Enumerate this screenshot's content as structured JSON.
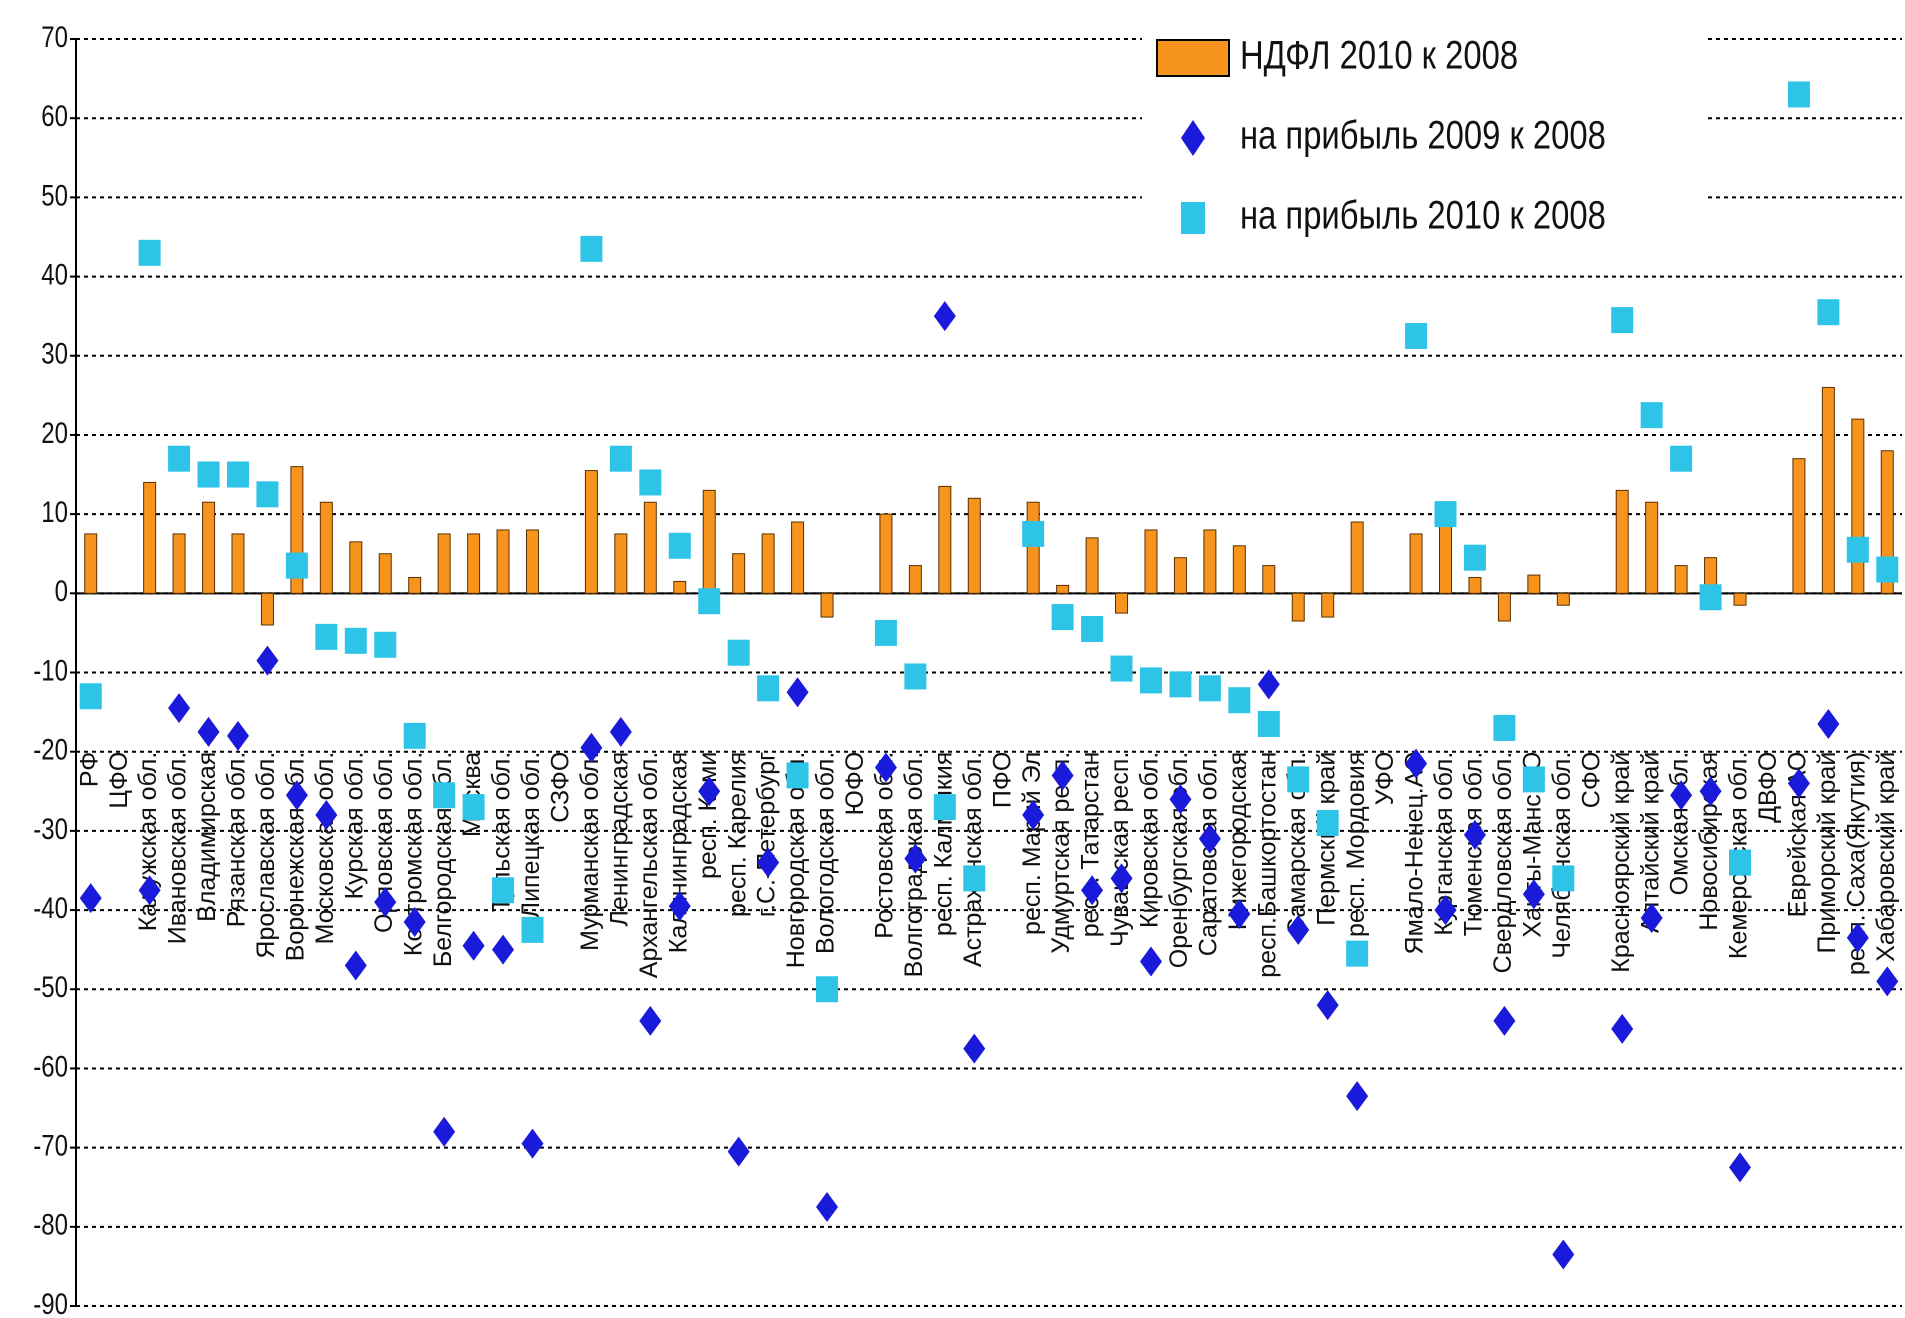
{
  "chart_data": {
    "type": "bar",
    "categories": [
      "РФ",
      "ЦФО",
      "Калужская обл.",
      "Ивановская обл.",
      "Владимирская",
      "Рязанская обл.",
      "Ярославская обл.",
      "Воронежская обл.",
      "Московская обл.",
      "Курская обл.",
      "Орловская обл.",
      "Костромская обл.",
      "Белгородская обл.",
      "Москва",
      "Тульская обл.",
      "Липецкая обл.",
      "СЗФО",
      "Мурманская обл.",
      "Ленинградская",
      "Архангельская обл.",
      "Калининградская",
      "респ. Коми",
      "респ. Карелия",
      "г.С.-Петербург",
      "Новгородская обл.",
      "Вологодская обл.",
      "ЮФО",
      "Ростовская обл.",
      "Волгоградская обл.",
      "респ. Калмыкия",
      "Астраханская обл.",
      "ПФО",
      "респ. Марий Эл",
      "Удмуртская респ.",
      "респ. Татарстан",
      "Чувашская респ.",
      "Кировская обл.",
      "Оренбургская обл.",
      "Саратовская обл.",
      "Нижегородская",
      "респ.Башкортостан",
      "Самарская обл.",
      "Пермский край",
      "респ. Мордовия",
      "УФО",
      "Ямало-Ненец.АО",
      "Курганская обл.",
      "Тюменская обл.",
      "Свердловская обл.",
      "Ханты-Манс.АО",
      "Челябинская обл.",
      "СФО",
      "Красноярский край",
      "Алтайский край",
      "Омская обл.",
      "Новосибирская",
      "Кемеровская обл.",
      "ДВФО",
      "Еврейская АО",
      "Приморский край",
      "респ. Саха(Якутия)",
      "Хабаровский край"
    ],
    "series": [
      {
        "name": "НДФЛ 2010 к 2008",
        "kind": "bar",
        "color": "#f7941d",
        "values": [
          7.5,
          null,
          14,
          7.5,
          11.5,
          7.5,
          -4,
          16,
          11.5,
          6.5,
          5,
          2,
          7.5,
          7.5,
          8,
          8,
          null,
          15.5,
          7.5,
          11.5,
          1.5,
          13,
          5,
          7.5,
          9,
          -3,
          null,
          10,
          3.5,
          13.5,
          12,
          null,
          11.5,
          1,
          7,
          -2.5,
          8,
          4.5,
          8,
          6,
          3.5,
          -3.5,
          -3,
          9,
          null,
          7.5,
          9.5,
          2,
          -3.5,
          2.3,
          -1.5,
          null,
          13,
          11.5,
          3.5,
          4.5,
          -1.5,
          null,
          17,
          26,
          22,
          18
        ]
      },
      {
        "name": "на прибыль 2009 к 2008",
        "kind": "diamond",
        "color": "#1a1adb",
        "values": [
          -38.5,
          null,
          -37.5,
          -14.5,
          -17.5,
          -18,
          -8.5,
          -25.5,
          -28,
          -47,
          -39,
          -41.5,
          -68,
          -44.5,
          -45,
          -69.5,
          null,
          -19.5,
          -17.5,
          -54,
          -39.5,
          -25,
          -70.5,
          -34,
          -12.5,
          -77.5,
          null,
          -22,
          -33.5,
          35,
          -57.5,
          null,
          -28,
          -23,
          -37.5,
          -36,
          -46.5,
          -26,
          -31,
          -40.5,
          -11.5,
          -42.5,
          -52,
          -63.5,
          null,
          -21.5,
          -40,
          -30.5,
          -54,
          -38,
          -83.5,
          null,
          -55,
          -41,
          -25.5,
          -25,
          -72.5,
          null,
          -24,
          -16.5,
          -43.5,
          -49
        ]
      },
      {
        "name": "на прибыль 2010 к 2008",
        "kind": "square",
        "color": "#2ec4e8",
        "values": [
          -13,
          null,
          43,
          17,
          15,
          15,
          12.5,
          3.5,
          -5.5,
          -6,
          -6.5,
          -18,
          -25.5,
          -27,
          -37.5,
          -42.5,
          null,
          43.5,
          17,
          14,
          6,
          -1,
          -7.5,
          -12,
          -23,
          -50,
          null,
          -5,
          -10.5,
          -27,
          -36,
          null,
          7.5,
          -3,
          -4.5,
          -9.5,
          -11,
          -11.5,
          -12,
          -13.5,
          -16.5,
          -23.5,
          -29,
          -45.5,
          null,
          32.5,
          10,
          4.5,
          -17,
          -23.5,
          -36,
          null,
          34.5,
          22.5,
          17,
          -0.5,
          -34,
          null,
          63,
          35.5,
          5.5,
          3
        ]
      }
    ],
    "ylim": [
      -90,
      70
    ],
    "yticks": [
      -90,
      -80,
      -70,
      -60,
      -50,
      -40,
      -30,
      -20,
      -10,
      0,
      10,
      20,
      30,
      40,
      50,
      60,
      70
    ],
    "grid": true
  }
}
